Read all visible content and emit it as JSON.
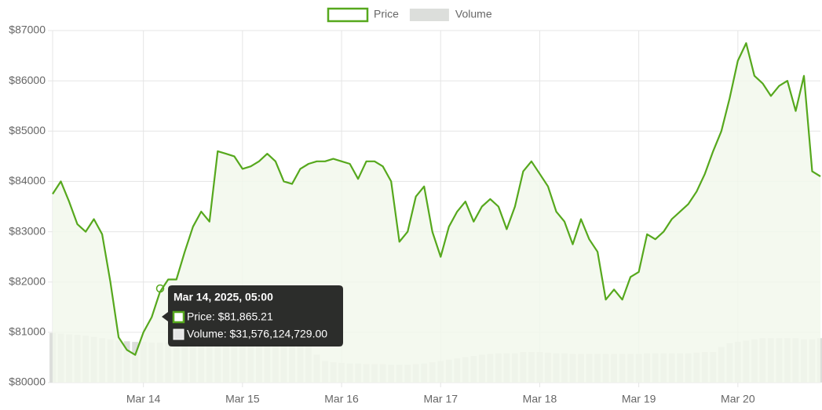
{
  "chart_data": {
    "type": "line",
    "categories": [
      null,
      null,
      null,
      null,
      null,
      null,
      null,
      null,
      null,
      null,
      null,
      "Mar 14",
      null,
      null,
      null,
      null,
      null,
      null,
      null,
      null,
      null,
      null,
      null,
      "Mar 15",
      null,
      null,
      null,
      null,
      null,
      null,
      null,
      null,
      null,
      null,
      null,
      "Mar 16",
      null,
      null,
      null,
      null,
      null,
      null,
      null,
      null,
      null,
      null,
      null,
      "Mar 17",
      null,
      null,
      null,
      null,
      null,
      null,
      null,
      null,
      null,
      null,
      null,
      "Mar 18",
      null,
      null,
      null,
      null,
      null,
      null,
      null,
      null,
      null,
      null,
      null,
      "Mar 19",
      null,
      null,
      null,
      null,
      null,
      null,
      null,
      null,
      null,
      null,
      null,
      "Mar 20",
      null,
      null,
      null,
      null,
      null,
      null,
      null,
      null,
      null,
      null
    ],
    "series": [
      {
        "name": "Price",
        "color": "#56a81d",
        "fill": "#f2f8ec",
        "values": [
          83750,
          84000,
          83600,
          83150,
          83000,
          83250,
          82950,
          82000,
          80900,
          80650,
          80550,
          81000,
          81300,
          81800,
          82050,
          82050,
          82600,
          83100,
          83400,
          83200,
          84600,
          84550,
          84500,
          84250,
          84300,
          84400,
          84550,
          84400,
          84000,
          83950,
          84250,
          84350,
          84400,
          84400,
          84450,
          84400,
          84350,
          84050,
          84400,
          84400,
          84300,
          84000,
          82800,
          83000,
          83700,
          83900,
          83000,
          82500,
          83100,
          83400,
          83600,
          83200,
          83500,
          83650,
          83500,
          83050,
          83500,
          84200,
          84400,
          84150,
          83900,
          83400,
          83200,
          82750,
          83250,
          82850,
          82600,
          81650,
          81850,
          81650,
          82100,
          82200,
          82950,
          82850,
          83000,
          83250,
          83400,
          83550,
          83800,
          84150,
          84600,
          85000,
          85650,
          86400,
          86750,
          86100,
          85950,
          85700,
          85900,
          86000,
          85400,
          86100,
          84200,
          84100
        ]
      },
      {
        "name": "Volume",
        "color": "#dcdedb",
        "type": "bar",
        "axis": "y2",
        "values": [
          39000000000,
          38500000000,
          38000000000,
          37500000000,
          37000000000,
          36000000000,
          35000000000,
          34000000000,
          33000000000,
          32500000000,
          32000000000,
          32000000000,
          31500000000,
          31500000000,
          31500000000,
          31000000000,
          31000000000,
          31000000000,
          31000000000,
          31000000000,
          31000000000,
          30500000000,
          30500000000,
          30000000000,
          30000000000,
          30000000000,
          30000000000,
          30000000000,
          30000000000,
          30000000000,
          30000000000,
          29500000000,
          22000000000,
          17000000000,
          16000000000,
          15500000000,
          15000000000,
          15000000000,
          14500000000,
          14500000000,
          14500000000,
          14000000000,
          14000000000,
          14000000000,
          14500000000,
          15000000000,
          16000000000,
          17000000000,
          18000000000,
          19000000000,
          20000000000,
          21000000000,
          22000000000,
          22500000000,
          23000000000,
          23000000000,
          23000000000,
          24000000000,
          24000000000,
          24000000000,
          23500000000,
          23000000000,
          23000000000,
          22500000000,
          22500000000,
          22500000000,
          22500000000,
          22500000000,
          22500000000,
          22500000000,
          22500000000,
          22500000000,
          23000000000,
          23000000000,
          23000000000,
          23000000000,
          23000000000,
          23000000000,
          23500000000,
          24000000000,
          24000000000,
          28000000000,
          31000000000,
          32000000000,
          33000000000,
          34000000000,
          35000000000,
          35000000000,
          35000000000,
          35000000000,
          35000000000,
          34000000000,
          34000000000,
          35000000000
        ]
      }
    ],
    "ylim": [
      80000,
      87000
    ],
    "yticks": [
      {
        "value": 80000,
        "label": "$80000"
      },
      {
        "value": 81000,
        "label": "$81000"
      },
      {
        "value": 82000,
        "label": "$82000"
      },
      {
        "value": 83000,
        "label": "$83000"
      },
      {
        "value": 84000,
        "label": "$84000"
      },
      {
        "value": 85000,
        "label": "$85000"
      },
      {
        "value": 86000,
        "label": "$86000"
      },
      {
        "value": 87000,
        "label": "$87000"
      }
    ],
    "y2lim": [
      0,
      277000000000
    ],
    "grid": true,
    "legend": "top",
    "tooltip": {
      "title": "Mar 14, 2025, 05:00",
      "lines": [
        "Price: $81,865.21",
        "Volume: $31,576,124,729.00"
      ]
    }
  }
}
